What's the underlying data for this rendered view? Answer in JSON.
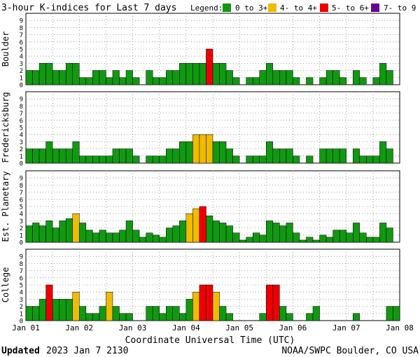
{
  "title": "3-hour K-indices for Last 7 days",
  "legend": {
    "label": "Legend:",
    "items": [
      {
        "text": "0 to 3+",
        "color": "#119911"
      },
      {
        "text": "4- to 4+",
        "color": "#f0bb00"
      },
      {
        "text": "5- to 6+",
        "color": "#ee0000"
      },
      {
        "text": "7- to 9",
        "color": "#660099"
      }
    ]
  },
  "xlabel": "Coordinate Universal Time (UTC)",
  "footer": {
    "updated_label": "Updated",
    "updated_value": "2023 Jan  7 2130",
    "source": "NOAA/SWPC Boulder, CO USA"
  },
  "chart_data": [
    {
      "type": "bar",
      "name": "Boulder",
      "ylim": [
        0,
        9
      ],
      "yticks": [
        "0",
        "1",
        "2",
        "3",
        "4",
        "5",
        "6",
        "7",
        "8",
        "9"
      ],
      "x_ticks": [
        "Jan 01",
        "Jan 02",
        "Jan 03",
        "Jan 04",
        "Jan 05",
        "Jan 06",
        "Jan 07",
        "Jan 08"
      ],
      "values": [
        2,
        2,
        3,
        3,
        2,
        2,
        3,
        3,
        1,
        1,
        2,
        2,
        1,
        2,
        1,
        2,
        1,
        0,
        2,
        1,
        1,
        2,
        2,
        3,
        3,
        3,
        3,
        5,
        3,
        3,
        2,
        1,
        0,
        1,
        1,
        2,
        3,
        2,
        2,
        2,
        1,
        0,
        1,
        0,
        1,
        2,
        2,
        1,
        0,
        2,
        1,
        0,
        1,
        3,
        2,
        0
      ],
      "grid": true
    },
    {
      "type": "bar",
      "name": "Fredericksburg",
      "ylim": [
        0,
        9
      ],
      "yticks": [
        "0",
        "1",
        "2",
        "3",
        "4",
        "5",
        "6",
        "7",
        "8",
        "9"
      ],
      "x_ticks": [
        "Jan 01",
        "Jan 02",
        "Jan 03",
        "Jan 04",
        "Jan 05",
        "Jan 06",
        "Jan 07",
        "Jan 08"
      ],
      "values": [
        2,
        2,
        2,
        3,
        2,
        2,
        2,
        3,
        1,
        1,
        1,
        1,
        1,
        2,
        2,
        2,
        1,
        0,
        1,
        1,
        1,
        2,
        2,
        3,
        3,
        4,
        4,
        4,
        3,
        3,
        2,
        1,
        0,
        1,
        1,
        1,
        3,
        2,
        2,
        2,
        1,
        0,
        1,
        0,
        2,
        2,
        2,
        2,
        0,
        2,
        1,
        1,
        1,
        3,
        2,
        0
      ],
      "grid": true
    },
    {
      "type": "bar",
      "name": "Est. Planetary",
      "ylim": [
        0,
        9
      ],
      "yticks": [
        "0",
        "1",
        "2",
        "3",
        "4",
        "5",
        "6",
        "7",
        "8",
        "9"
      ],
      "x_ticks": [
        "Jan 01",
        "Jan 02",
        "Jan 03",
        "Jan 04",
        "Jan 05",
        "Jan 06",
        "Jan 07",
        "Jan 08"
      ],
      "values": [
        2.3,
        2.7,
        2.3,
        3,
        2,
        3,
        3.3,
        4,
        2.7,
        1.7,
        1.3,
        1.7,
        1.3,
        1.3,
        1.7,
        3,
        1.7,
        0.7,
        1.3,
        1,
        0.7,
        2,
        2.3,
        3,
        4,
        4.7,
        5,
        3.7,
        3,
        2.7,
        2.3,
        1.3,
        0.3,
        0.7,
        1.3,
        1,
        3,
        2.7,
        2.3,
        2.7,
        1.3,
        0.3,
        0.7,
        0.3,
        1,
        0.7,
        1.7,
        1.7,
        1.3,
        2.7,
        1.3,
        0.7,
        0.7,
        2.7,
        2,
        0
      ],
      "grid": true
    },
    {
      "type": "bar",
      "name": "College",
      "ylim": [
        0,
        9
      ],
      "yticks": [
        "0",
        "1",
        "2",
        "3",
        "4",
        "5",
        "6",
        "7",
        "8",
        "9"
      ],
      "x_ticks": [
        "Jan 01",
        "Jan 02",
        "Jan 03",
        "Jan 04",
        "Jan 05",
        "Jan 06",
        "Jan 07",
        "Jan 08"
      ],
      "values": [
        2,
        2,
        3,
        5,
        3,
        3,
        3,
        4,
        2,
        1,
        1,
        2,
        4,
        2,
        1,
        1,
        0,
        0,
        2,
        2,
        1,
        2,
        2,
        1,
        3,
        4,
        5,
        5,
        4,
        2,
        1,
        0,
        0,
        0,
        0,
        1,
        5,
        5,
        2,
        1,
        0,
        0,
        1,
        2,
        0,
        0,
        0,
        0,
        0,
        1,
        0,
        0,
        0,
        0,
        2,
        2
      ],
      "grid": true
    }
  ]
}
